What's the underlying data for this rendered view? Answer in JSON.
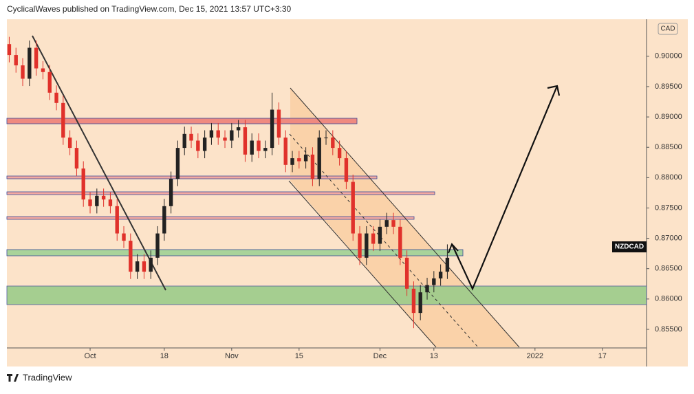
{
  "chart_data": {
    "type": "candlestick",
    "title": "CyclicalWaves published on TradingView.com, Dec 15, 2021 13:57 UTC+3:30",
    "symbol": "NZDCAD",
    "currency": "CAD",
    "brand": "TradingView",
    "up_color": "#222222",
    "down_color": "#e0312b",
    "xlim": [
      -12.35,
      82.55
    ],
    "xticks": [
      {
        "value": 0,
        "label": "Oct"
      },
      {
        "value": 11,
        "label": "18"
      },
      {
        "value": 21,
        "label": "Nov"
      },
      {
        "value": 31,
        "label": "15"
      },
      {
        "value": 43,
        "label": "Dec"
      },
      {
        "value": 51,
        "label": "13"
      },
      {
        "value": 66,
        "label": "2022"
      },
      {
        "value": 76,
        "label": "17"
      }
    ],
    "ylim": [
      0.85205,
      0.9061
    ],
    "yticks": [
      {
        "value": 0.855,
        "label": "0.85500"
      },
      {
        "value": 0.86,
        "label": "0.86000"
      },
      {
        "value": 0.865,
        "label": "0.86500"
      },
      {
        "value": 0.87,
        "label": "0.87000"
      },
      {
        "value": 0.875,
        "label": "0.87500"
      },
      {
        "value": 0.88,
        "label": "0.88000"
      },
      {
        "value": 0.885,
        "label": "0.88500"
      },
      {
        "value": 0.89,
        "label": "0.89000"
      },
      {
        "value": 0.895,
        "label": "0.89500"
      },
      {
        "value": 0.9,
        "label": "0.90000"
      }
    ],
    "x": [
      -12,
      -11,
      -10,
      -9,
      -8,
      -7,
      -6,
      -5,
      -4,
      -3,
      -2,
      -1,
      0,
      1,
      2,
      3,
      4,
      5,
      6,
      7,
      8,
      9,
      10,
      11,
      12,
      13,
      14,
      15,
      16,
      17,
      18,
      19,
      20,
      21,
      22,
      23,
      24,
      25,
      26,
      27,
      28,
      29,
      30,
      31,
      32,
      33,
      34,
      35,
      36,
      37,
      38,
      39,
      40,
      41,
      42,
      43,
      44,
      45,
      46,
      47,
      48,
      49,
      50,
      51,
      52,
      53
    ],
    "open": [
      0.902,
      0.9002,
      0.8985,
      0.8963,
      0.9014,
      0.898,
      0.8974,
      0.894,
      0.8923,
      0.8866,
      0.8849,
      0.8815,
      0.8764,
      0.8753,
      0.877,
      0.8764,
      0.8753,
      0.8708,
      0.8696,
      0.8645,
      0.8662,
      0.8645,
      0.8668,
      0.8708,
      0.8753,
      0.8798,
      0.8849,
      0.8872,
      0.8861,
      0.8844,
      0.8866,
      0.8878,
      0.8866,
      0.8861,
      0.8878,
      0.8883,
      0.8838,
      0.8861,
      0.8844,
      0.8849,
      0.8912,
      0.8866,
      0.8821,
      0.8832,
      0.8827,
      0.8838,
      0.8798,
      0.8866,
      0.8866,
      0.8849,
      0.8832,
      0.8793,
      0.8708,
      0.8668,
      0.8708,
      0.8691,
      0.8719,
      0.873,
      0.8719,
      0.8668,
      0.8617,
      0.8577,
      0.8611,
      0.8623,
      0.8634,
      0.8645
    ],
    "high": [
      0.9032,
      0.9014,
      0.8997,
      0.9026,
      0.9026,
      0.8992,
      0.8986,
      0.8952,
      0.8935,
      0.8878,
      0.8861,
      0.8827,
      0.8776,
      0.8782,
      0.8782,
      0.8776,
      0.8765,
      0.872,
      0.8708,
      0.8674,
      0.8674,
      0.868,
      0.872,
      0.8765,
      0.881,
      0.8861,
      0.8884,
      0.8884,
      0.8873,
      0.8878,
      0.889,
      0.889,
      0.8878,
      0.889,
      0.8895,
      0.8895,
      0.8873,
      0.8873,
      0.8861,
      0.894,
      0.8924,
      0.8878,
      0.8844,
      0.8844,
      0.885,
      0.885,
      0.8878,
      0.8878,
      0.8878,
      0.8861,
      0.8844,
      0.8805,
      0.872,
      0.872,
      0.872,
      0.8731,
      0.8742,
      0.8742,
      0.8731,
      0.868,
      0.8629,
      0.8623,
      0.8635,
      0.8646,
      0.8657,
      0.869
    ],
    "low": [
      0.899,
      0.8973,
      0.8951,
      0.8951,
      0.8968,
      0.8962,
      0.8928,
      0.8911,
      0.8854,
      0.8837,
      0.8803,
      0.8752,
      0.8741,
      0.8741,
      0.8752,
      0.8741,
      0.8696,
      0.8684,
      0.8633,
      0.8633,
      0.8633,
      0.8633,
      0.8656,
      0.8696,
      0.8741,
      0.8786,
      0.8837,
      0.8849,
      0.8832,
      0.8832,
      0.8854,
      0.8854,
      0.8849,
      0.8849,
      0.8866,
      0.8826,
      0.8826,
      0.8832,
      0.8832,
      0.8837,
      0.8854,
      0.8809,
      0.8809,
      0.8815,
      0.8815,
      0.8786,
      0.8786,
      0.8854,
      0.8837,
      0.882,
      0.8781,
      0.8696,
      0.8656,
      0.8656,
      0.8679,
      0.8679,
      0.8707,
      0.8707,
      0.8656,
      0.8605,
      0.8552,
      0.8565,
      0.8599,
      0.8611,
      0.8622,
      0.8633
    ],
    "close": [
      0.9002,
      0.8985,
      0.8963,
      0.9014,
      0.898,
      0.8974,
      0.894,
      0.8923,
      0.8866,
      0.8849,
      0.8815,
      0.8764,
      0.8753,
      0.877,
      0.8764,
      0.8753,
      0.8708,
      0.8696,
      0.8645,
      0.8662,
      0.8645,
      0.8668,
      0.8708,
      0.8753,
      0.8798,
      0.8849,
      0.8872,
      0.8861,
      0.8844,
      0.8866,
      0.8878,
      0.8866,
      0.8861,
      0.8878,
      0.8883,
      0.8838,
      0.8861,
      0.8844,
      0.8849,
      0.8912,
      0.8866,
      0.8821,
      0.8832,
      0.8827,
      0.8838,
      0.8798,
      0.8866,
      0.8866,
      0.8849,
      0.8832,
      0.8793,
      0.8708,
      0.8668,
      0.8708,
      0.8691,
      0.8719,
      0.873,
      0.8719,
      0.8668,
      0.8617,
      0.8577,
      0.8611,
      0.8623,
      0.8634,
      0.8645,
      0.8668
    ]
  }
}
